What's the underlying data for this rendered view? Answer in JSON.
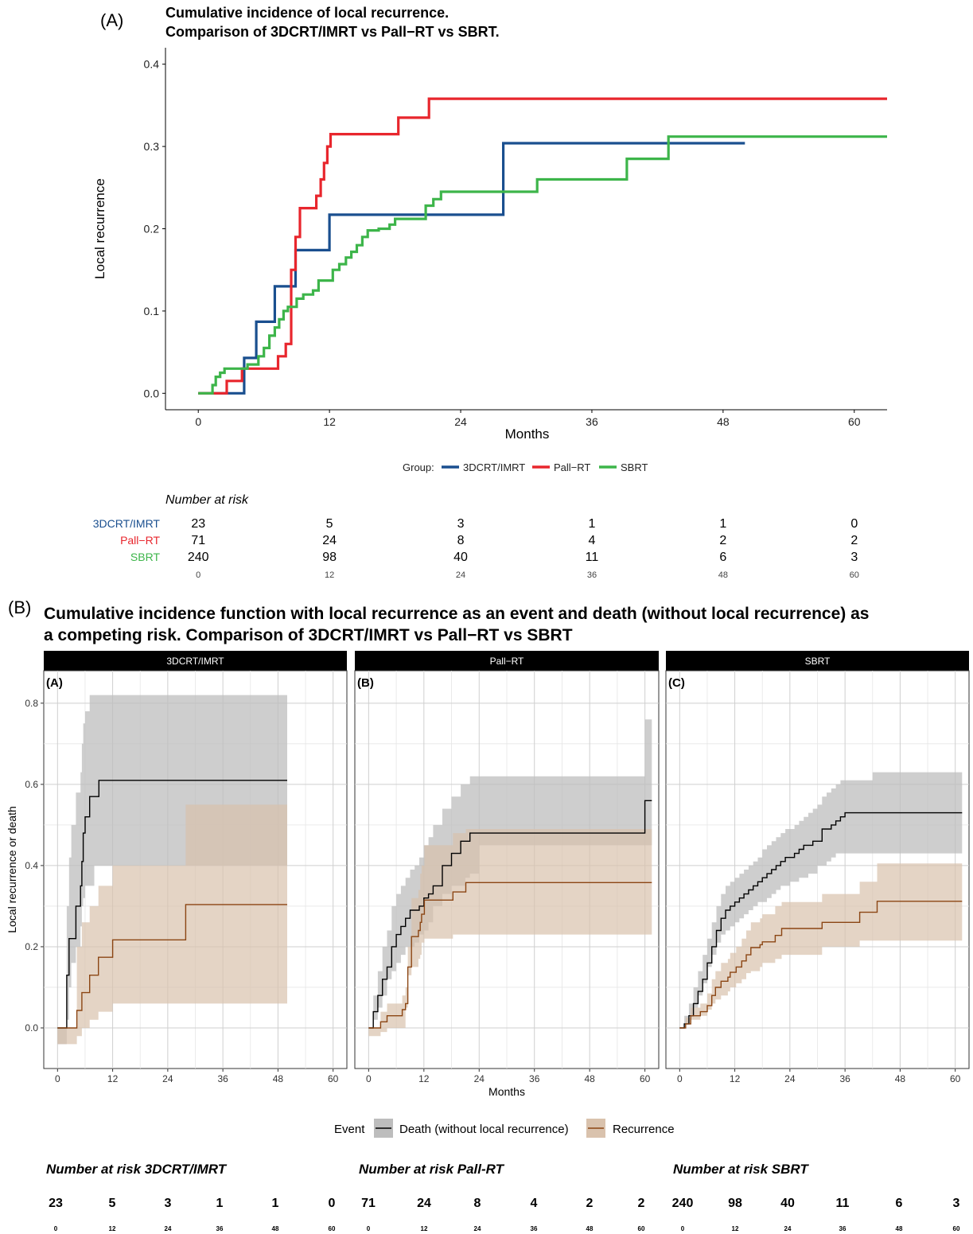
{
  "panel_a": {
    "tag": "(A)",
    "title_line1": "Cumulative incidence of local recurrence.",
    "title_line2": "Comparison of 3DCRT/IMRT vs Pall−RT vs SBRT."
  },
  "panel_b": {
    "tag": "(B)",
    "title_line1": "Cumulative incidence function with local recurrence as an event and death (without local recurrence) as",
    "title_line2": "a competing risk. Comparison of 3DCRT/IMRT vs Pall−RT vs SBRT"
  },
  "colors": {
    "3DCRT/IMRT": "#1a4f8f",
    "Pall-RT": "#e8262d",
    "SBRT": "#3db54a",
    "death_line": "#000000",
    "death_band": "#bdbdbd",
    "recurrence_line": "#8b4513",
    "recurrence_band": "#d9c2ad",
    "strip": "#000000"
  },
  "chart_data": [
    {
      "type": "line",
      "step": true,
      "xlabel": "Months",
      "ylabel": "Local recurrence",
      "xlim": [
        -3,
        63
      ],
      "ylim": [
        -0.02,
        0.42
      ],
      "xticks": [
        0,
        12,
        24,
        36,
        48,
        60
      ],
      "yticks": [
        0.0,
        0.1,
        0.2,
        0.3,
        0.4
      ],
      "ytick_labels": [
        "0.0",
        "0.1",
        "0.2",
        "0.3",
        "0.4"
      ],
      "grid": false,
      "legend": {
        "position": "bottom",
        "title": "Group:",
        "labels": [
          "3DCRT/IMRT",
          "Pall−RT",
          "SBRT"
        ]
      },
      "series": [
        {
          "name": "3DCRT/IMRT",
          "color": "#1a4f8f",
          "x": [
            0,
            4.2,
            4.2,
            5.3,
            7.0,
            8.9,
            12.0,
            27.9,
            50
          ],
          "y": [
            0,
            0,
            0.043,
            0.087,
            0.13,
            0.174,
            0.217,
            0.304,
            0.304
          ]
        },
        {
          "name": "Pall-RT",
          "color": "#e8262d",
          "x": [
            0,
            1.2,
            2.6,
            4.0,
            7.3,
            8.0,
            8.5,
            8.9,
            9.3,
            10.8,
            11.2,
            11.5,
            11.8,
            12.1,
            18.3,
            21.1,
            63
          ],
          "y": [
            0,
            0,
            0.015,
            0.03,
            0.045,
            0.06,
            0.15,
            0.19,
            0.225,
            0.24,
            0.26,
            0.28,
            0.3,
            0.315,
            0.335,
            0.358,
            0.358
          ]
        },
        {
          "name": "SBRT",
          "color": "#3db54a",
          "x": [
            0,
            1.0,
            1.3,
            1.6,
            2.0,
            2.4,
            4.5,
            5.5,
            6.0,
            6.5,
            7.0,
            7.4,
            7.8,
            8.2,
            9.0,
            9.6,
            10.5,
            11.0,
            12.3,
            12.9,
            13.5,
            14.0,
            14.5,
            15.0,
            15.5,
            16.5,
            17.5,
            18.0,
            20.8,
            21.5,
            22.2,
            31.0,
            39.2,
            43.0,
            63
          ],
          "y": [
            0,
            0,
            0.01,
            0.02,
            0.025,
            0.03,
            0.035,
            0.045,
            0.055,
            0.07,
            0.08,
            0.09,
            0.1,
            0.105,
            0.115,
            0.12,
            0.125,
            0.137,
            0.15,
            0.157,
            0.165,
            0.172,
            0.18,
            0.19,
            0.198,
            0.2,
            0.205,
            0.212,
            0.228,
            0.236,
            0.245,
            0.26,
            0.285,
            0.312,
            0.312
          ]
        }
      ]
    },
    {
      "type": "area",
      "step": true,
      "facets": [
        "3DCRT/IMRT",
        "Pall−RT",
        "SBRT"
      ],
      "facet_tags": [
        "(A)",
        "(B)",
        "(C)"
      ],
      "xlabel": "Months",
      "ylabel": "Local recurrence or death",
      "xlim": [
        -3,
        63
      ],
      "ylim": [
        -0.1,
        0.88
      ],
      "xticks": [
        0,
        12,
        24,
        36,
        48,
        60
      ],
      "yticks": [
        0.0,
        0.2,
        0.4,
        0.6,
        0.8
      ],
      "ytick_labels": [
        "0.0",
        "0.2",
        "0.4",
        "0.6",
        "0.8"
      ],
      "grid": true,
      "legend": {
        "position": "bottom",
        "title": "Event",
        "labels": [
          "Death (without local recurrence)",
          "Recurrence"
        ]
      },
      "panels": [
        {
          "death": {
            "x": [
              0,
              2,
              2.5,
              3,
              4,
              5,
              5.3,
              5.6,
              6,
              7,
              8,
              9,
              10,
              50
            ],
            "y": [
              0,
              0.13,
              0.22,
              0.22,
              0.3,
              0.35,
              0.41,
              0.48,
              0.52,
              0.57,
              0.57,
              0.61,
              0.61,
              0.61
            ],
            "lo": [
              0,
              -0.04,
              0.02,
              0.1,
              0.16,
              0.2,
              0.25,
              0.3,
              0.32,
              0.35,
              0.35,
              0.4,
              0.4,
              0.4
            ],
            "hi": [
              0,
              0.3,
              0.42,
              0.5,
              0.58,
              0.63,
              0.7,
              0.75,
              0.78,
              0.82,
              0.82,
              0.82,
              0.82,
              0.82
            ]
          },
          "recurrence": {
            "x": [
              0,
              4.2,
              5.3,
              7.0,
              8.9,
              12.0,
              27.9,
              50
            ],
            "y": [
              0,
              0.043,
              0.087,
              0.13,
              0.174,
              0.217,
              0.304,
              0.304
            ],
            "lo": [
              0,
              -0.04,
              -0.02,
              0.0,
              0.02,
              0.04,
              0.06,
              0.06
            ],
            "hi": [
              0,
              0.2,
              0.26,
              0.3,
              0.35,
              0.4,
              0.55,
              0.55
            ]
          }
        },
        {
          "death": {
            "x": [
              0,
              1,
              2,
              3,
              4,
              5,
              6,
              7,
              8,
              9,
              10,
              11,
              12,
              13,
              14,
              16,
              18,
              20,
              21,
              22,
              24,
              60,
              61.5
            ],
            "y": [
              0,
              0.04,
              0.08,
              0.12,
              0.15,
              0.2,
              0.23,
              0.25,
              0.27,
              0.29,
              0.29,
              0.3,
              0.32,
              0.33,
              0.35,
              0.4,
              0.43,
              0.46,
              0.46,
              0.48,
              0.48,
              0.56,
              0.56
            ],
            "lo": [
              0,
              0.0,
              0.02,
              0.05,
              0.08,
              0.12,
              0.14,
              0.16,
              0.18,
              0.2,
              0.2,
              0.21,
              0.23,
              0.24,
              0.26,
              0.3,
              0.33,
              0.35,
              0.35,
              0.37,
              0.38,
              0.45,
              0.45
            ],
            "hi": [
              0,
              0.08,
              0.14,
              0.2,
              0.24,
              0.3,
              0.33,
              0.35,
              0.37,
              0.39,
              0.4,
              0.42,
              0.45,
              0.47,
              0.5,
              0.54,
              0.57,
              0.6,
              0.6,
              0.62,
              0.62,
              0.76,
              0.76
            ]
          },
          "recurrence": {
            "x": [
              0,
              2.6,
              4.0,
              7.3,
              8.0,
              8.5,
              9.3,
              10.8,
              11.2,
              11.5,
              12.1,
              18.3,
              21.1,
              61.5
            ],
            "y": [
              0,
              0.015,
              0.03,
              0.045,
              0.06,
              0.15,
              0.225,
              0.24,
              0.26,
              0.28,
              0.315,
              0.335,
              0.358,
              0.358
            ],
            "lo": [
              0,
              -0.02,
              -0.01,
              0.0,
              0.0,
              0.05,
              0.13,
              0.15,
              0.17,
              0.18,
              0.21,
              0.22,
              0.23,
              0.23
            ],
            "hi": [
              0,
              0.04,
              0.06,
              0.08,
              0.1,
              0.2,
              0.32,
              0.34,
              0.38,
              0.4,
              0.45,
              0.48,
              0.49,
              0.49
            ]
          }
        },
        {
          "death": {
            "x": [
              0,
              1,
              2,
              3,
              4,
              5,
              6,
              7,
              8,
              9,
              10,
              11,
              12,
              13,
              14,
              15,
              16,
              17,
              18,
              19,
              20,
              21,
              22,
              23,
              24,
              25,
              26,
              27,
              28,
              29,
              30,
              31,
              32,
              33,
              34,
              35,
              36,
              42,
              61.5
            ],
            "y": [
              0,
              0.01,
              0.03,
              0.06,
              0.09,
              0.12,
              0.16,
              0.2,
              0.24,
              0.27,
              0.29,
              0.3,
              0.31,
              0.32,
              0.33,
              0.34,
              0.35,
              0.36,
              0.37,
              0.38,
              0.39,
              0.4,
              0.41,
              0.42,
              0.42,
              0.43,
              0.44,
              0.45,
              0.45,
              0.46,
              0.46,
              0.49,
              0.49,
              0.5,
              0.51,
              0.52,
              0.53,
              0.53,
              0.53
            ],
            "lo": [
              0,
              0.0,
              0.01,
              0.03,
              0.05,
              0.08,
              0.11,
              0.15,
              0.18,
              0.21,
              0.23,
              0.24,
              0.25,
              0.26,
              0.27,
              0.28,
              0.29,
              0.3,
              0.31,
              0.31,
              0.32,
              0.33,
              0.34,
              0.35,
              0.35,
              0.36,
              0.36,
              0.37,
              0.37,
              0.38,
              0.38,
              0.4,
              0.4,
              0.41,
              0.42,
              0.43,
              0.43,
              0.43,
              0.43
            ],
            "hi": [
              0,
              0.03,
              0.06,
              0.1,
              0.14,
              0.18,
              0.22,
              0.26,
              0.3,
              0.33,
              0.35,
              0.36,
              0.37,
              0.38,
              0.39,
              0.4,
              0.41,
              0.42,
              0.44,
              0.45,
              0.46,
              0.47,
              0.48,
              0.49,
              0.49,
              0.5,
              0.51,
              0.52,
              0.53,
              0.54,
              0.55,
              0.57,
              0.58,
              0.59,
              0.6,
              0.61,
              0.61,
              0.63,
              0.63
            ]
          },
          "recurrence": {
            "x": [
              0,
              1.3,
              2.4,
              4.5,
              6.0,
              7.0,
              7.8,
              9.0,
              10.5,
              11.0,
              12.3,
              13.5,
              14.5,
              15.5,
              17.5,
              18.0,
              20.8,
              22.2,
              31.0,
              39.2,
              43.0,
              61.5
            ],
            "y": [
              0,
              0.01,
              0.03,
              0.04,
              0.055,
              0.08,
              0.1,
              0.115,
              0.125,
              0.137,
              0.15,
              0.165,
              0.18,
              0.198,
              0.205,
              0.212,
              0.228,
              0.245,
              0.26,
              0.285,
              0.312,
              0.312
            ],
            "lo": [
              0,
              0.0,
              0.01,
              0.02,
              0.03,
              0.045,
              0.06,
              0.07,
              0.08,
              0.09,
              0.1,
              0.11,
              0.12,
              0.135,
              0.14,
              0.15,
              0.16,
              0.17,
              0.18,
              0.2,
              0.215,
              0.215
            ],
            "hi": [
              0,
              0.025,
              0.05,
              0.06,
              0.085,
              0.12,
              0.14,
              0.16,
              0.17,
              0.185,
              0.2,
              0.22,
              0.24,
              0.26,
              0.27,
              0.28,
              0.3,
              0.31,
              0.33,
              0.36,
              0.405,
              0.405
            ]
          }
        }
      ]
    }
  ],
  "risk_table_a": {
    "title": "Number at risk",
    "rows": [
      {
        "label": "3DCRT/IMRT",
        "values": [
          "23",
          "5",
          "3",
          "1",
          "1",
          "0"
        ]
      },
      {
        "label": "Pall−RT",
        "values": [
          "71",
          "24",
          "8",
          "4",
          "2",
          "2"
        ]
      },
      {
        "label": "SBRT",
        "values": [
          "240",
          "98",
          "40",
          "11",
          "6",
          "3"
        ]
      }
    ],
    "times": [
      "0",
      "12",
      "24",
      "36",
      "48",
      "60"
    ]
  },
  "risk_table_b": [
    {
      "title": "Number at risk 3DCRT/IMRT",
      "values": [
        "23",
        "5",
        "3",
        "1",
        "1",
        "0"
      ],
      "times": [
        "0",
        "12",
        "24",
        "36",
        "48",
        "60"
      ]
    },
    {
      "title": "Number at risk Pall-RT",
      "values": [
        "71",
        "24",
        "8",
        "4",
        "2",
        "2"
      ],
      "times": [
        "0",
        "12",
        "24",
        "36",
        "48",
        "60"
      ]
    },
    {
      "title": "Number at risk SBRT",
      "values": [
        "240",
        "98",
        "40",
        "11",
        "6",
        "3"
      ],
      "times": [
        "0",
        "12",
        "24",
        "36",
        "48",
        "60"
      ]
    }
  ]
}
